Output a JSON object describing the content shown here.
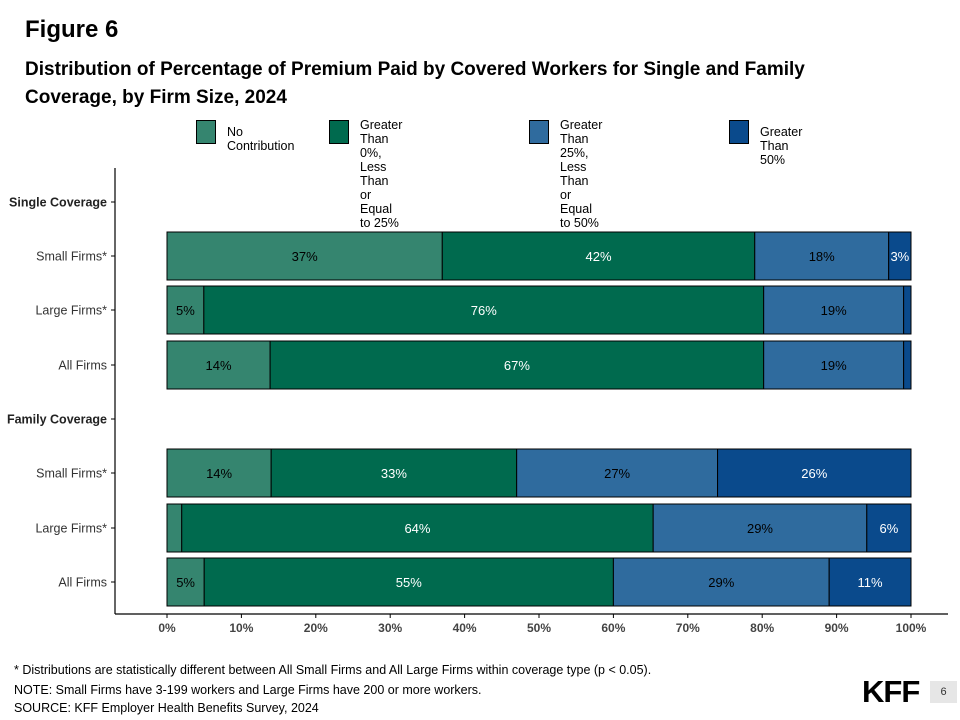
{
  "figure_label": "Figure 6",
  "title": "Distribution of Percentage of Premium Paid by Covered Workers for Single and Family Coverage, by Firm Size, 2024",
  "legend": [
    {
      "label": "No Contribution",
      "color": "#35856f"
    },
    {
      "label": "Greater Than 0%,\nLess Than or Equal to 25%",
      "color": "#006a4e"
    },
    {
      "label": "Greater Than 25%,\nLess Than or Equal to 50%",
      "color": "#2f6b9e"
    },
    {
      "label": "Greater Than 50%",
      "color": "#0a4a8c"
    }
  ],
  "chart_data": {
    "type": "bar",
    "orientation": "horizontal",
    "stacked": true,
    "title": "Distribution of Percentage of Premium Paid by Covered Workers for Single and Family Coverage, by Firm Size, 2024",
    "xlim": [
      0,
      100
    ],
    "x_ticks": [
      "0%",
      "10%",
      "20%",
      "30%",
      "40%",
      "50%",
      "60%",
      "70%",
      "80%",
      "90%",
      "100%"
    ],
    "grid": false,
    "legend_position": "top",
    "y_labels": [
      "Single Coverage",
      "Small Firms*",
      "Large Firms*",
      "All Firms",
      "Family Coverage",
      "Small Firms*",
      "Large Firms*",
      "All Firms"
    ],
    "series_names": [
      "No Contribution",
      "Greater Than 0%, Less Than or Equal to 25%",
      "Greater Than 25%, Less Than or Equal to 50%",
      "Greater Than 50%"
    ],
    "rows": [
      {
        "group": "Single Coverage",
        "label": "Small Firms*",
        "values": [
          37,
          42,
          18,
          3
        ],
        "labels": [
          "37%",
          "42%",
          "18%",
          "3%"
        ]
      },
      {
        "group": "Single Coverage",
        "label": "Large Firms*",
        "values": [
          5,
          76,
          19,
          1
        ],
        "labels": [
          "5%",
          "76%",
          "19%",
          ""
        ]
      },
      {
        "group": "Single Coverage",
        "label": "All Firms",
        "values": [
          14,
          67,
          19,
          1
        ],
        "labels": [
          "14%",
          "67%",
          "19%",
          ""
        ]
      },
      {
        "group": "Family Coverage",
        "label": "Small Firms*",
        "values": [
          14,
          33,
          27,
          26
        ],
        "labels": [
          "14%",
          "33%",
          "27%",
          "26%"
        ]
      },
      {
        "group": "Family Coverage",
        "label": "Large Firms*",
        "values": [
          2,
          64,
          29,
          6
        ],
        "labels": [
          "",
          "64%",
          "29%",
          "6%"
        ]
      },
      {
        "group": "Family Coverage",
        "label": "All Firms",
        "values": [
          5,
          55,
          29,
          11
        ],
        "labels": [
          "5%",
          "55%",
          "29%",
          "11%"
        ]
      }
    ],
    "label_colors": [
      "#000000",
      "#ffffff",
      "#000000",
      "#ffffff"
    ]
  },
  "notes": [
    "* Distributions are statistically different between All Small Firms and All Large Firms within coverage type (p < 0.05).",
    "NOTE: Small Firms have 3-199 workers and Large Firms have 200 or more workers.",
    "SOURCE: KFF Employer Health Benefits Survey, 2024"
  ],
  "logo_text": "KFF",
  "page_number": "6"
}
